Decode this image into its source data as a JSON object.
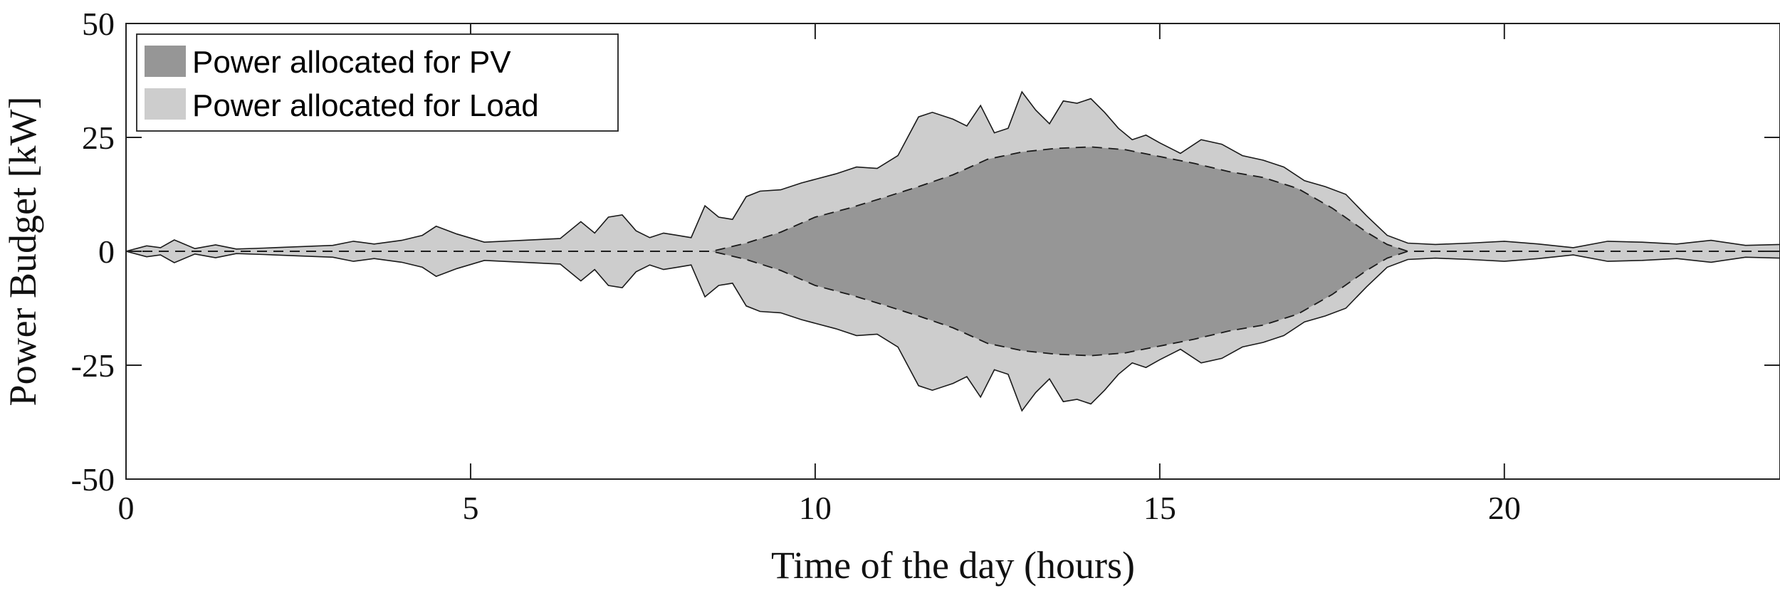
{
  "chart_data": {
    "type": "area",
    "xlabel": "Time of the day (hours)",
    "ylabel": "Power Budget [kW]",
    "xlim": [
      0,
      24
    ],
    "ylim": [
      -50,
      50
    ],
    "xticks": [
      0,
      5,
      10,
      15,
      20
    ],
    "yticks": [
      -50,
      -25,
      0,
      25,
      50
    ],
    "grid": false,
    "legend_position": "top-left",
    "colors": {
      "pv": "#969696",
      "load": "#cdcdcd",
      "outline": "#1a1a1a"
    },
    "series": [
      {
        "name": "Power allocated for PV",
        "x": [
          0,
          8.3,
          8.5,
          9,
          9.5,
          10,
          10.5,
          11,
          11.5,
          12,
          12.5,
          13,
          13.5,
          14,
          14.5,
          15,
          15.5,
          16,
          16.5,
          17,
          17.5,
          18,
          18.3,
          18.6,
          24
        ],
        "y": [
          0,
          0,
          0,
          1.8,
          4.2,
          7.5,
          9.5,
          11.8,
          14.2,
          16.8,
          20.2,
          21.8,
          22.6,
          22.9,
          22.3,
          20.8,
          19.3,
          17.5,
          16.2,
          13.8,
          9.5,
          4.2,
          1.5,
          0,
          0
        ]
      },
      {
        "name": "Power allocated for Load",
        "x": [
          0,
          0.3,
          0.5,
          0.7,
          1,
          1.3,
          1.6,
          2,
          2.5,
          3,
          3.3,
          3.6,
          4,
          4.3,
          4.5,
          4.8,
          5.2,
          5.6,
          6,
          6.3,
          6.6,
          6.8,
          7,
          7.2,
          7.4,
          7.6,
          7.8,
          8,
          8.2,
          8.4,
          8.6,
          8.8,
          9,
          9.2,
          9.5,
          9.8,
          10,
          10.3,
          10.6,
          10.9,
          11.2,
          11.5,
          11.7,
          12,
          12.2,
          12.4,
          12.6,
          12.8,
          13,
          13.2,
          13.4,
          13.6,
          13.8,
          14,
          14.2,
          14.4,
          14.6,
          14.8,
          15,
          15.3,
          15.6,
          15.9,
          16.2,
          16.5,
          16.8,
          17.1,
          17.4,
          17.7,
          18,
          18.3,
          18.6,
          19,
          19.5,
          20,
          20.5,
          21,
          21.5,
          22,
          22.5,
          23,
          23.5,
          24
        ],
        "y": [
          0,
          1.2,
          0.8,
          2.5,
          0.6,
          1.4,
          0.5,
          0.7,
          1,
          1.3,
          2.2,
          1.6,
          2.4,
          3.5,
          5.5,
          3.8,
          2,
          2.3,
          2.6,
          2.8,
          6.5,
          4,
          7.5,
          8,
          4.5,
          3,
          4,
          3.5,
          3,
          10,
          7.5,
          7,
          12,
          13.2,
          13.5,
          15,
          15.8,
          17,
          18.5,
          18.2,
          21,
          29.5,
          30.5,
          29,
          27.5,
          32,
          26,
          27,
          35,
          31,
          28,
          33,
          32.5,
          33.5,
          30.5,
          27,
          24.5,
          25.5,
          23.8,
          21.5,
          24.5,
          23.5,
          21,
          20,
          18.5,
          15.5,
          14.2,
          12.5,
          7.8,
          3.5,
          1.8,
          1.5,
          1.8,
          2.2,
          1.6,
          0.8,
          2.2,
          2,
          1.6,
          2.4,
          1.3,
          1.5
        ]
      }
    ]
  }
}
